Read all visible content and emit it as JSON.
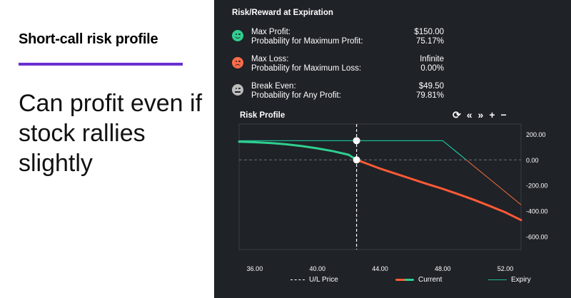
{
  "left": {
    "title": "Short-call risk profile",
    "subtitle": "Can profit even if stock rallies slightly"
  },
  "risk_reward": {
    "header": "Risk/Reward at Expiration",
    "metrics": [
      {
        "label": "Max Profit:",
        "value": "$150.00",
        "sub_label": "Probability for Maximum Profit:",
        "sub_value": "75.17%",
        "icon": "happy-face-icon"
      },
      {
        "label": "Max Loss:",
        "value": "Infinite",
        "sub_label": "Probability for Maximum Loss:",
        "sub_value": "0.00%",
        "icon": "sad-face-icon"
      },
      {
        "label": "Break Even:",
        "value": "$49.50",
        "sub_label": "Probability for Any Profit:",
        "sub_value": "79.81%",
        "icon": "neutral-face-icon"
      }
    ]
  },
  "risk_profile": {
    "title": "Risk Profile",
    "toolbar": {
      "refresh": "⟳",
      "back": "«",
      "forward": "»",
      "zoom_in": "+",
      "zoom_out": "−"
    }
  },
  "colors": {
    "panel_bg": "#1f2227",
    "accent_purple": "#6a2fd1",
    "current": "#ff5a36",
    "current_profit": "#2fcf8f",
    "expiry": "#1db896",
    "expiry_loss": "#e0663f"
  },
  "chart_data": {
    "type": "line",
    "xlabel": "",
    "ylabel": "",
    "x_ticks": [
      "36.00",
      "40.00",
      "44.00",
      "48.00",
      "52.00"
    ],
    "y_ticks": [
      "200.00",
      "0.00",
      "-200.00",
      "-400.00",
      "-600.00"
    ],
    "xlim": [
      35.0,
      53.0
    ],
    "ylim": [
      -700,
      280
    ],
    "ul_price": 42.5,
    "series": [
      {
        "name": "Current",
        "x": [
          35,
          36,
          37,
          38,
          39,
          40,
          41,
          42,
          42.5,
          43,
          44,
          45,
          46,
          47,
          48,
          49,
          50,
          51,
          52,
          53
        ],
        "y": [
          142,
          138,
          132,
          122,
          108,
          90,
          68,
          40,
          0,
          -22,
          -68,
          -108,
          -148,
          -188,
          -226,
          -268,
          -312,
          -360,
          -410,
          -470
        ]
      },
      {
        "name": "Expiry",
        "x": [
          35,
          48,
          50,
          53
        ],
        "y": [
          150,
          150,
          -50,
          -350
        ]
      }
    ],
    "legend": [
      {
        "name": "U/L Price"
      },
      {
        "name": "Current"
      },
      {
        "name": "Expiry"
      }
    ]
  }
}
